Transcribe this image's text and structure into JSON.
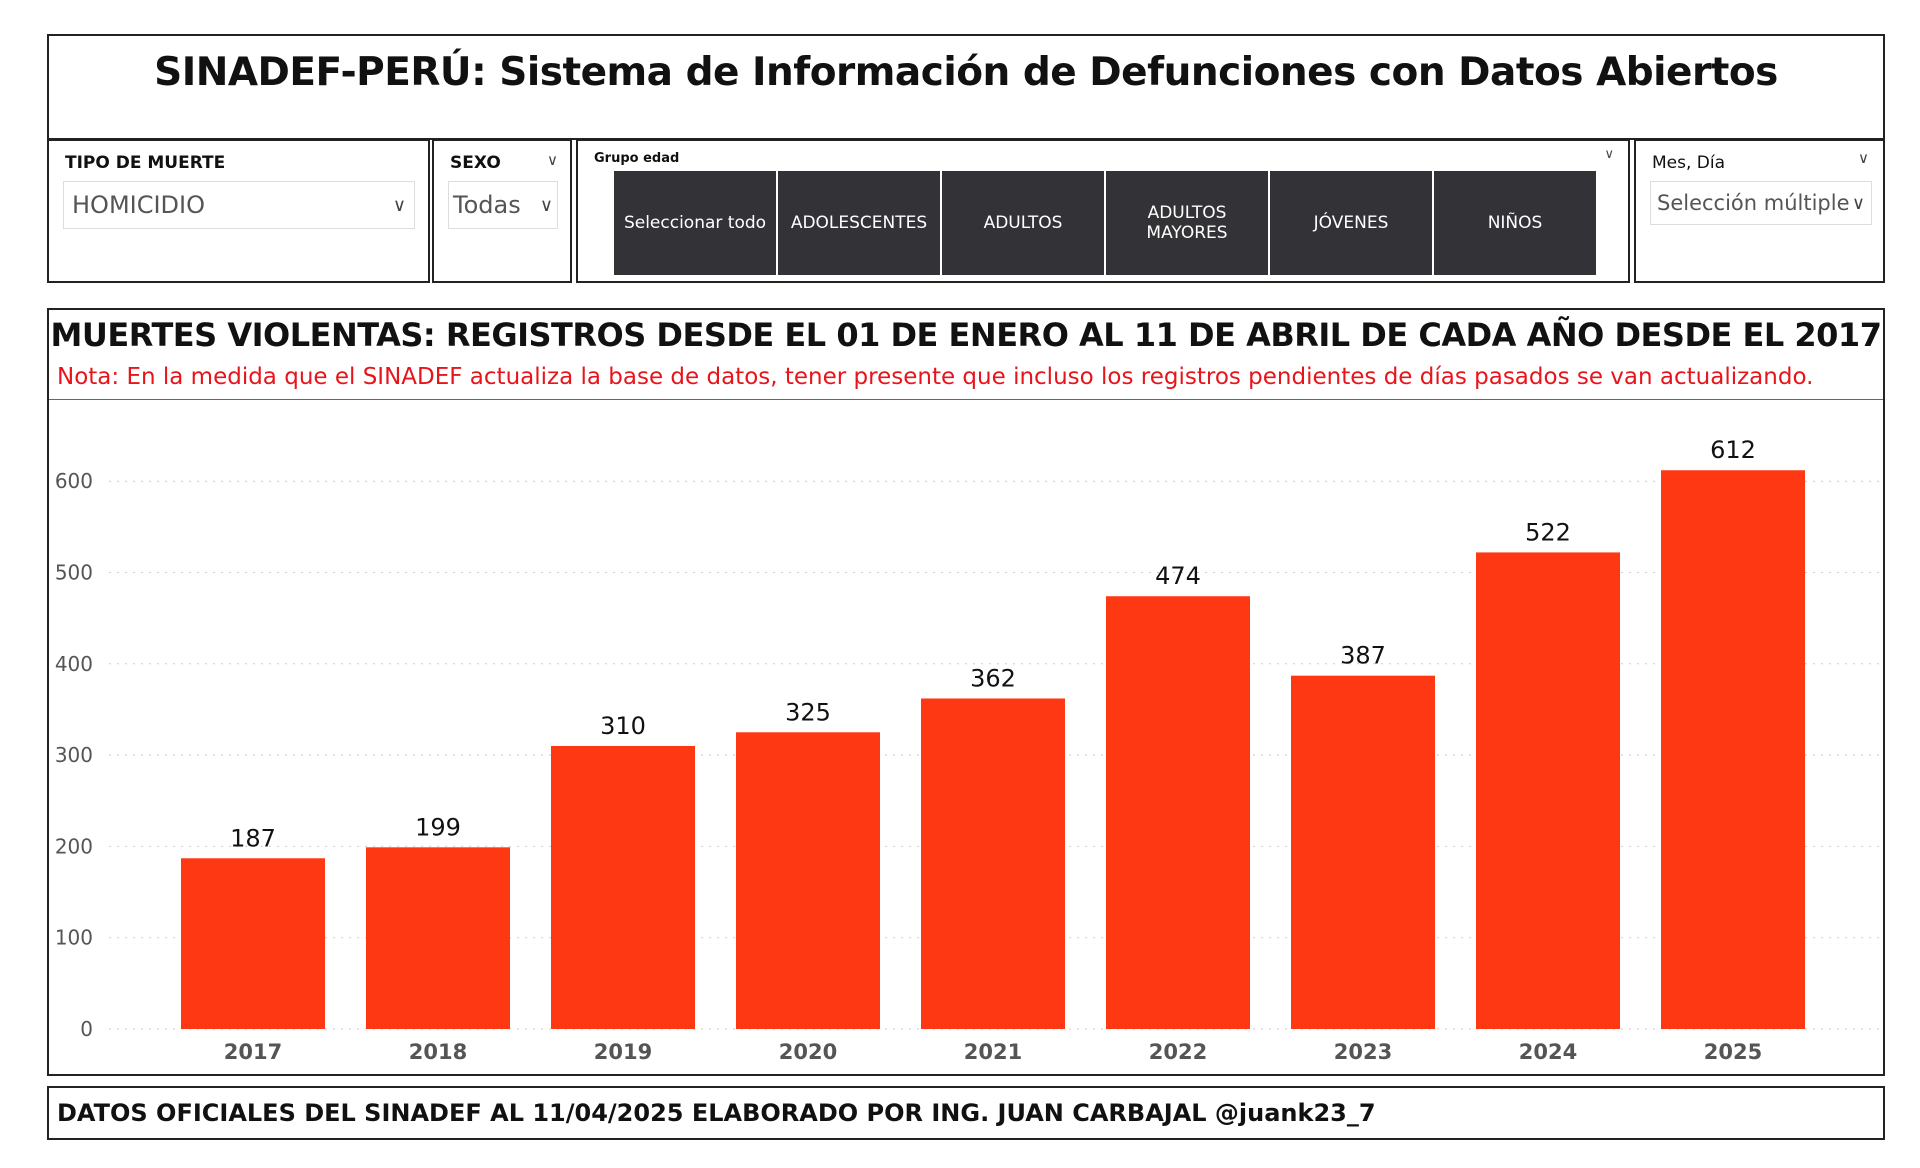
{
  "header": {
    "title": "SINADEF-PERÚ: Sistema de Información de Defunciones con Datos Abiertos"
  },
  "filters": {
    "tipo": {
      "label": "TIPO DE MUERTE",
      "value": "HOMICIDIO"
    },
    "sexo": {
      "label": "SEXO",
      "value": "Todas"
    },
    "grupo": {
      "label": "Grupo edad",
      "options": [
        "Seleccionar todo",
        "ADOLESCENTES",
        "ADULTOS",
        "ADULTOS MAYORES",
        "JÓVENES",
        "NIÑOS"
      ]
    },
    "mes": {
      "label": "Mes, Día",
      "value": "Selección múltiple"
    }
  },
  "chart": {
    "title": "MUERTES VIOLENTAS: REGISTROS DESDE EL 01 DE ENERO AL 11 DE ABRIL DE CADA AÑO DESDE EL 2017",
    "note": "Nota: En la medida que el SINADEF actualiza la base de datos, tener presente que incluso los registros pendientes de días pasados se van actualizando."
  },
  "chart_data": {
    "type": "bar",
    "categories": [
      "2017",
      "2018",
      "2019",
      "2020",
      "2021",
      "2022",
      "2023",
      "2024",
      "2025"
    ],
    "values": [
      187,
      199,
      310,
      325,
      362,
      474,
      387,
      522,
      612
    ],
    "yticks": [
      0,
      100,
      200,
      300,
      400,
      500,
      600
    ],
    "ylim": [
      0,
      650
    ],
    "grid": true,
    "bar_color": "#ff3814",
    "xlabel": "",
    "ylabel": ""
  },
  "footer": {
    "text": "DATOS OFICIALES DEL SINADEF AL 11/04/2025 ELABORADO POR ING. JUAN CARBAJAL @juank23_7"
  }
}
